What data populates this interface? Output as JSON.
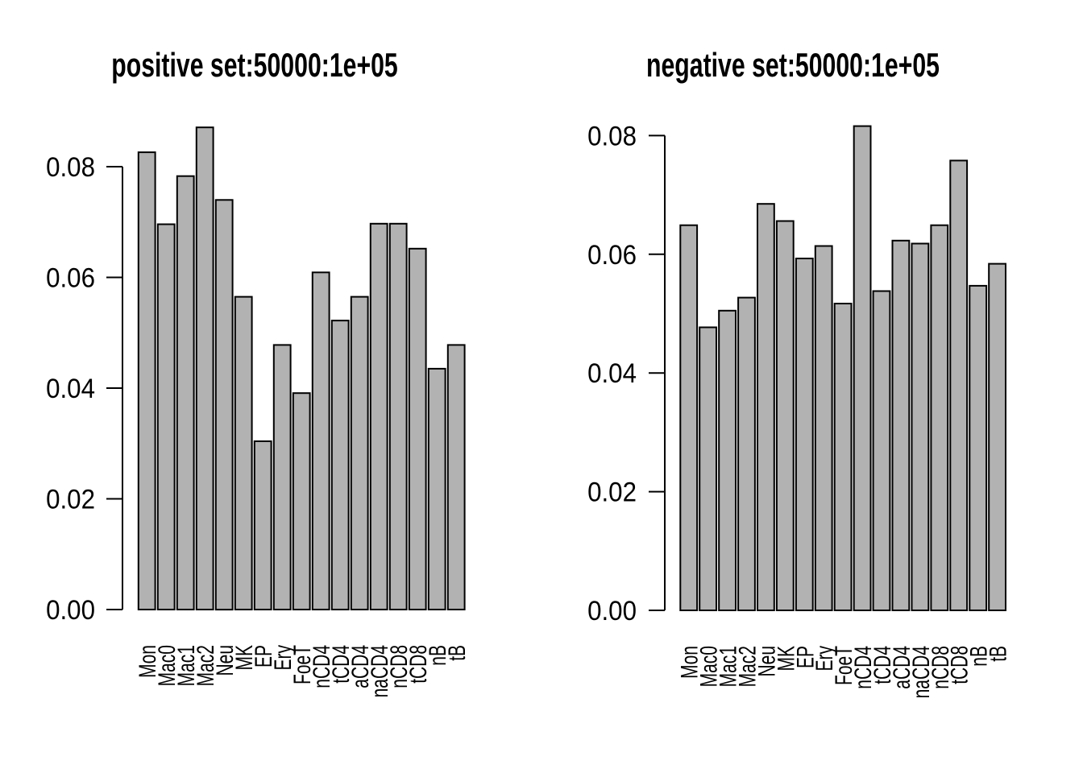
{
  "figure": {
    "background_color": "#ffffff",
    "text_color": "#000000",
    "bar_fill_color": "#b2b2b2",
    "bar_border_color": "#000000"
  },
  "chart_data": [
    {
      "type": "bar",
      "title": "positive set:50000:1e+05",
      "categories": [
        "Mon",
        "Mac0",
        "Mac1",
        "Mac2",
        "Neu",
        "MK",
        "EP",
        "Ery",
        "FoeT",
        "nCD4",
        "tCD4",
        "aCD4",
        "naCD4",
        "nCD8",
        "tCD8",
        "nB",
        "tB"
      ],
      "values": [
        0.0826,
        0.0696,
        0.0783,
        0.0871,
        0.074,
        0.0565,
        0.0304,
        0.0478,
        0.0391,
        0.0609,
        0.0522,
        0.0565,
        0.0697,
        0.0697,
        0.0652,
        0.0435,
        0.0478
      ],
      "xlabel": "",
      "ylabel": "",
      "ylim": [
        0,
        0.0871
      ],
      "y_ticks": [
        0,
        0.02,
        0.04,
        0.06,
        0.08
      ],
      "y_tick_labels": [
        "0.00",
        "0.02",
        "0.04",
        "0.06",
        "0.08"
      ],
      "grid": false,
      "legend": null,
      "bar_style": "gray fill, black outline, R base graphics"
    },
    {
      "type": "bar",
      "title": "negative set:50000:1e+05",
      "categories": [
        "Mon",
        "Mac0",
        "Mac1",
        "Mac2",
        "Neu",
        "MK",
        "EP",
        "Ery",
        "FoeT",
        "nCD4",
        "tCD4",
        "aCD4",
        "naCD4",
        "nCD8",
        "tCD8",
        "nB",
        "tB"
      ],
      "values": [
        0.0649,
        0.0477,
        0.0505,
        0.0527,
        0.0685,
        0.0656,
        0.0593,
        0.0614,
        0.0517,
        0.0816,
        0.0538,
        0.0623,
        0.0618,
        0.0649,
        0.0758,
        0.0547,
        0.0584
      ],
      "xlabel": "",
      "ylabel": "",
      "ylim": [
        0,
        0.0816
      ],
      "y_ticks": [
        0,
        0.02,
        0.04,
        0.06,
        0.08
      ],
      "y_tick_labels": [
        "0.00",
        "0.02",
        "0.04",
        "0.06",
        "0.08"
      ],
      "grid": false,
      "legend": null,
      "bar_style": "gray fill, black outline, R base graphics"
    }
  ]
}
